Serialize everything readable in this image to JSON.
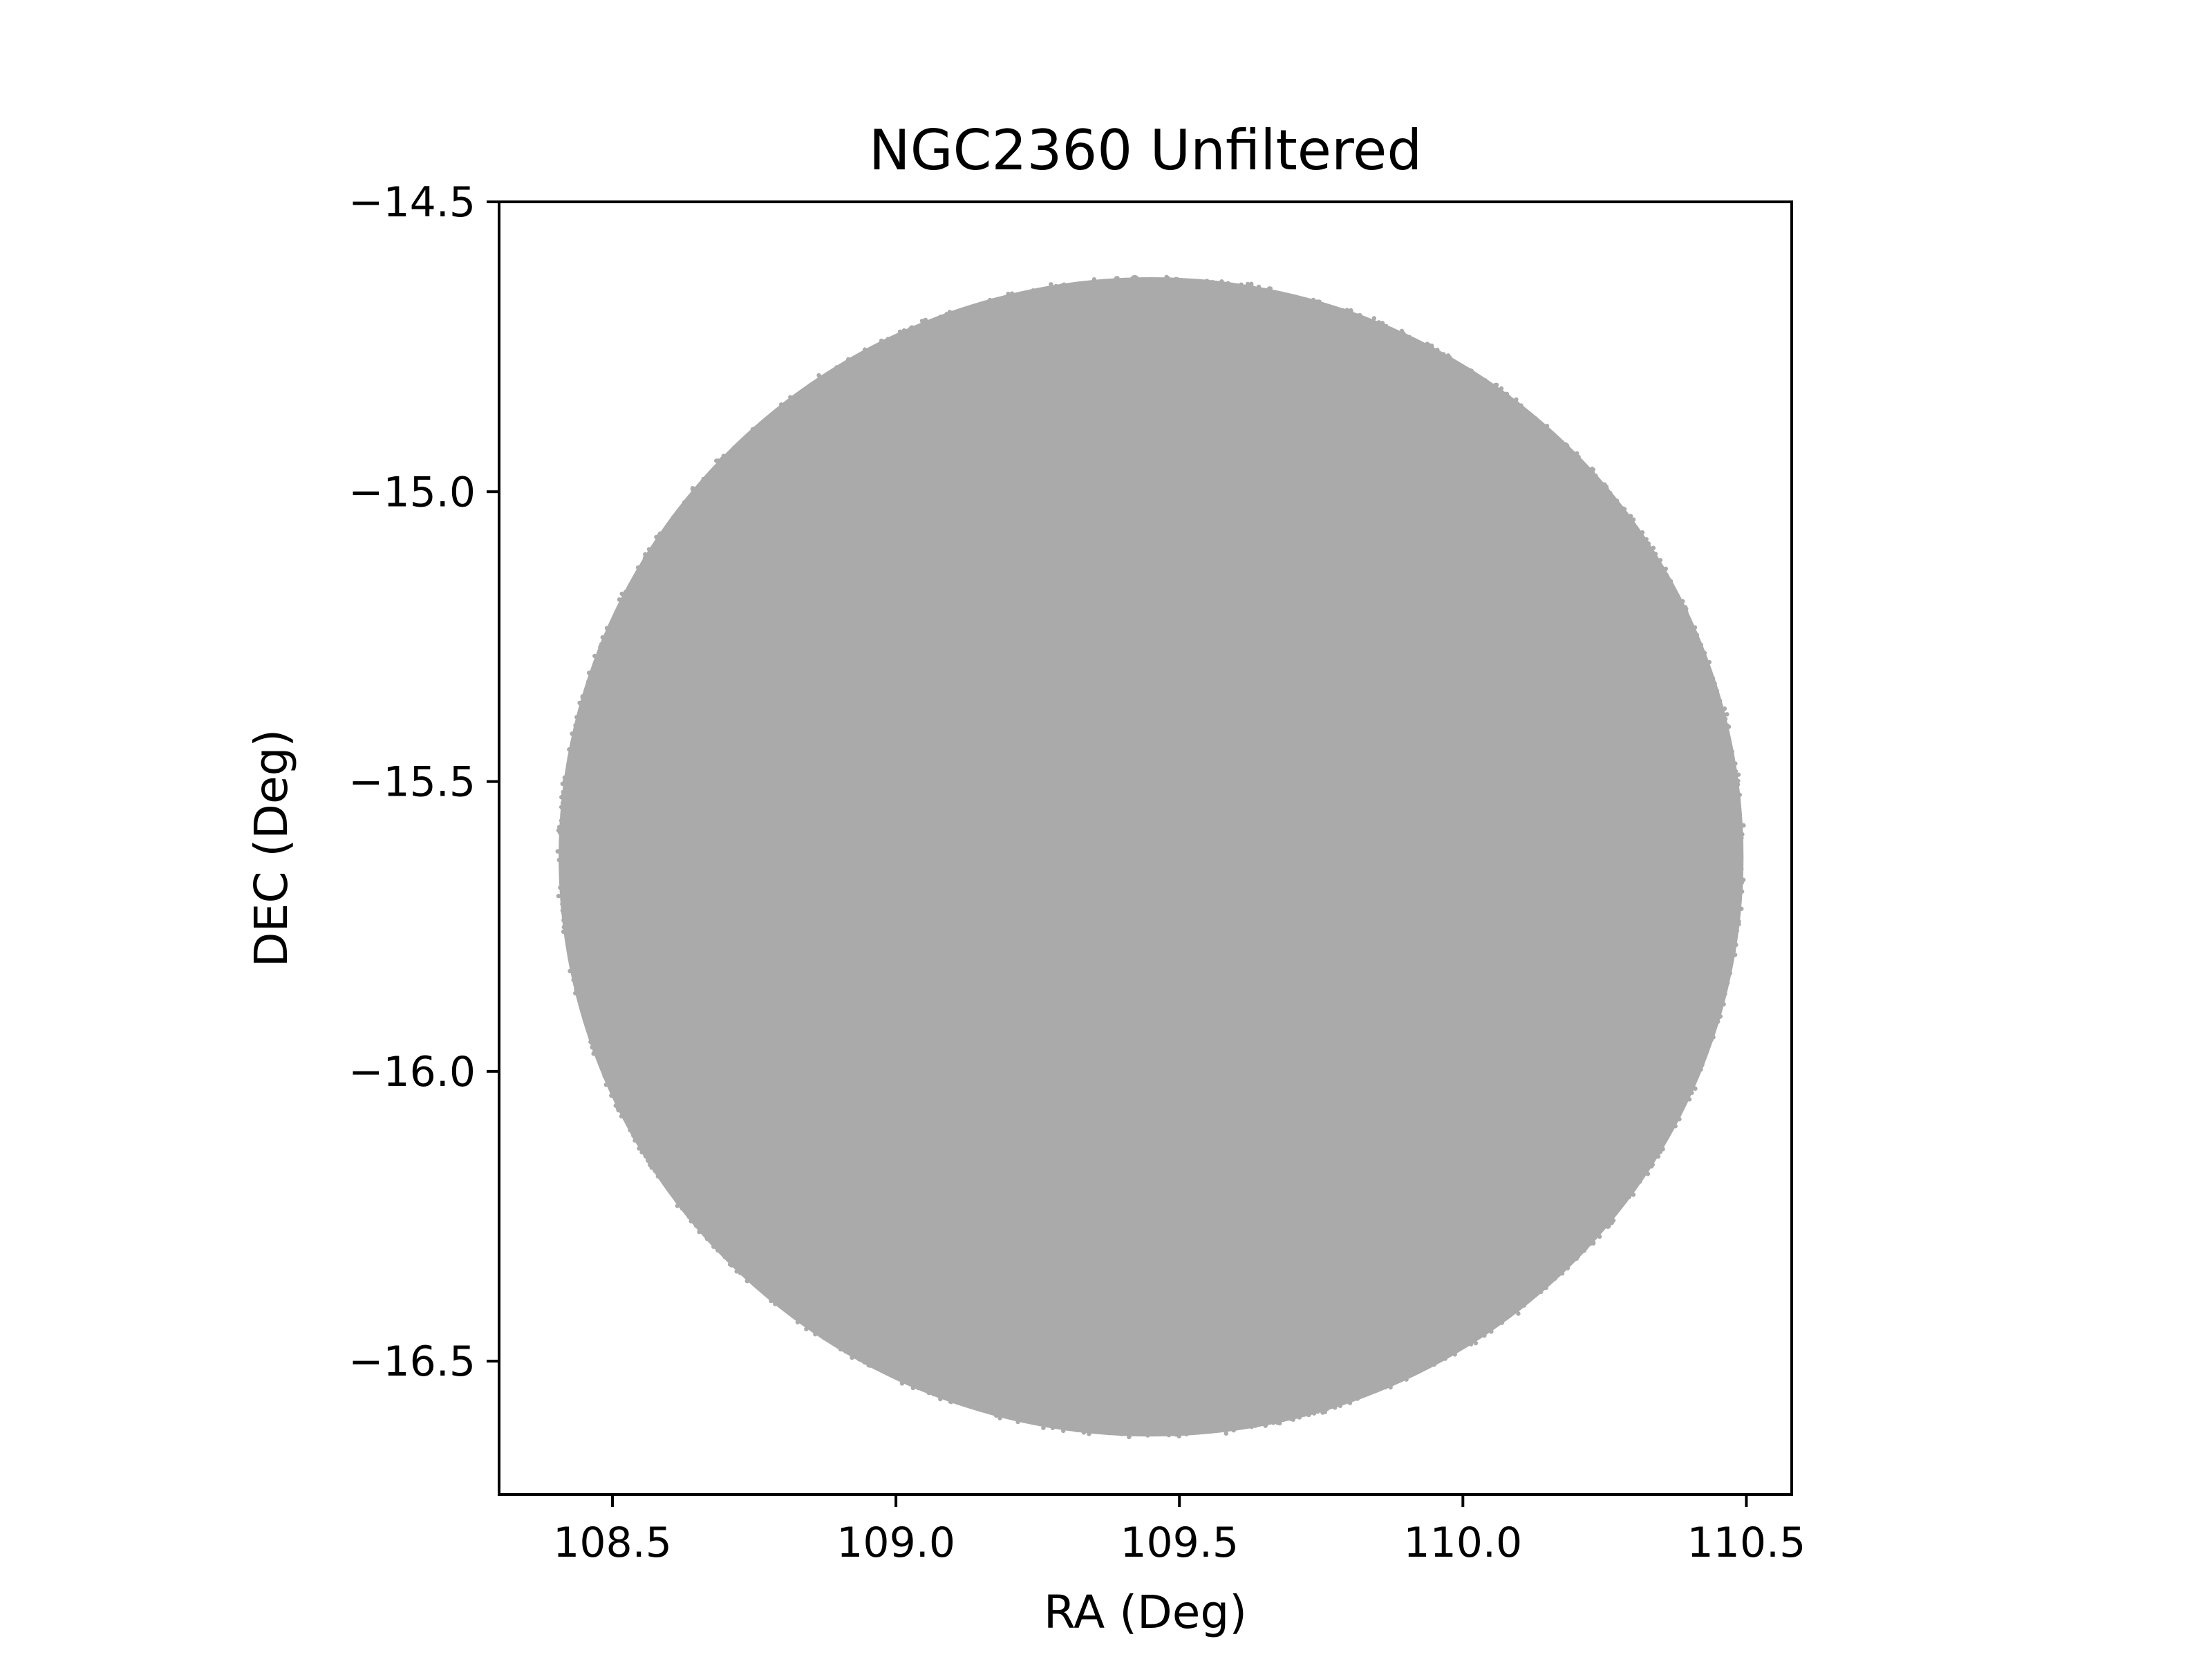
{
  "chart_data": {
    "type": "scatter",
    "title": "NGC2360 Unfiltered",
    "xlabel": "RA (Deg)",
    "ylabel": "DEC (Deg)",
    "xlim": [
      108.3,
      110.58
    ],
    "ylim": [
      -16.73,
      -14.5
    ],
    "x_ticks": [
      108.5,
      109.0,
      109.5,
      110.0,
      110.5
    ],
    "x_tick_labels": [
      "108.5",
      "109.0",
      "109.5",
      "110.0",
      "110.5"
    ],
    "y_ticks": [
      -14.5,
      -15.0,
      -15.5,
      -16.0,
      -16.5
    ],
    "y_tick_labels": [
      "−14.5",
      "−15.0",
      "−15.5",
      "−16.0",
      "−16.5"
    ],
    "grid": false,
    "legend": "none",
    "series": [
      {
        "marker_color": "#aaaaaa",
        "region": "circular field of densely packed points",
        "center": {
          "ra": 109.45,
          "dec": -15.63
        },
        "ra_extent": [
          108.4,
          110.49
        ],
        "dec_extent": [
          -16.63,
          -14.63
        ]
      }
    ]
  }
}
